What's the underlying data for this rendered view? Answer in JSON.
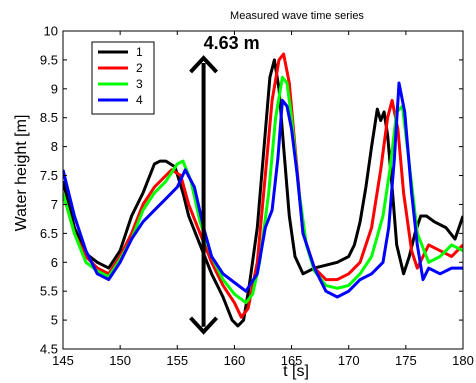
{
  "chart_data": {
    "type": "line",
    "title": "Measured wave time series",
    "xlabel": "t [s]",
    "ylabel": "Water height [m]",
    "xlim": [
      145,
      180
    ],
    "ylim": [
      4.5,
      10
    ],
    "xticks": [
      145,
      150,
      155,
      160,
      165,
      170,
      175,
      180
    ],
    "yticks": [
      4.5,
      5,
      5.5,
      6,
      6.5,
      7,
      7.5,
      8,
      8.5,
      9,
      9.5,
      10
    ],
    "grid": false,
    "legend_position": "top-left",
    "annotation": {
      "text": "4.63 m",
      "x": 157.3,
      "y_top": 9.55,
      "y_bottom": 4.78
    },
    "series": [
      {
        "name": "1",
        "color": "#000000",
        "x": [
          145,
          146,
          147,
          148,
          149,
          150,
          151,
          152,
          153,
          153.5,
          154,
          154.8,
          155.5,
          156,
          157,
          158,
          159,
          159.8,
          160.3,
          160.8,
          161.3,
          162,
          162.6,
          163.1,
          163.5,
          163.9,
          164.3,
          164.8,
          165.3,
          166,
          167,
          168,
          169,
          170,
          170.5,
          171,
          171.5,
          172,
          172.5,
          172.8,
          173.1,
          173.4,
          173.8,
          174.2,
          174.8,
          175.3,
          175.8,
          176.3,
          176.8,
          177.5,
          178.5,
          179.3,
          180
        ],
        "y": [
          7.4,
          6.6,
          6.15,
          6.0,
          5.9,
          6.2,
          6.8,
          7.2,
          7.7,
          7.75,
          7.75,
          7.65,
          7.2,
          6.8,
          6.3,
          5.8,
          5.4,
          5.0,
          4.9,
          5.0,
          5.6,
          6.6,
          8.0,
          9.2,
          9.5,
          9.0,
          8.0,
          6.8,
          6.1,
          5.8,
          5.9,
          5.95,
          6.0,
          6.1,
          6.3,
          6.7,
          7.3,
          8.0,
          8.65,
          8.45,
          8.6,
          8.2,
          7.3,
          6.3,
          5.8,
          6.1,
          6.5,
          6.8,
          6.8,
          6.7,
          6.6,
          6.4,
          6.8
        ]
      },
      {
        "name": "2",
        "color": "#ff0000",
        "x": [
          145,
          146,
          147,
          148,
          149,
          150,
          151,
          152,
          153,
          154,
          154.5,
          155.3,
          156,
          157,
          158,
          159,
          160,
          160.6,
          161.2,
          162,
          162.7,
          163.3,
          163.9,
          164.3,
          164.8,
          165.3,
          166,
          167,
          168,
          169,
          170,
          171,
          172,
          172.8,
          173.4,
          173.8,
          174.3,
          174.8,
          175.5,
          176,
          177,
          178,
          179,
          180
        ],
        "y": [
          7.2,
          6.5,
          6.1,
          5.9,
          5.8,
          6.1,
          6.5,
          7.0,
          7.3,
          7.5,
          7.6,
          7.5,
          7.0,
          6.5,
          6.0,
          5.6,
          5.3,
          5.05,
          5.2,
          6.0,
          7.5,
          8.8,
          9.5,
          9.6,
          9.1,
          8.0,
          6.5,
          5.9,
          5.7,
          5.7,
          5.8,
          6.0,
          6.6,
          7.6,
          8.5,
          8.8,
          8.3,
          7.2,
          6.2,
          5.9,
          6.3,
          6.2,
          6.1,
          6.3
        ]
      },
      {
        "name": "3",
        "color": "#00ff00",
        "x": [
          145,
          146,
          147,
          148,
          149,
          150,
          151,
          152,
          153,
          154,
          155,
          155.5,
          156.2,
          157,
          158,
          159,
          160,
          161,
          161.6,
          162.2,
          163,
          163.6,
          164.2,
          164.6,
          165,
          165.6,
          166.3,
          167,
          168,
          169,
          170,
          171,
          172,
          173,
          173.6,
          174.2,
          174.7,
          175.3,
          176,
          177,
          178,
          179,
          180
        ],
        "y": [
          7.2,
          6.5,
          6.0,
          5.85,
          5.75,
          6.05,
          6.4,
          6.9,
          7.2,
          7.4,
          7.7,
          7.75,
          7.4,
          6.7,
          6.1,
          5.7,
          5.45,
          5.3,
          5.45,
          6.0,
          7.2,
          8.5,
          9.2,
          9.1,
          8.5,
          7.3,
          6.3,
          5.85,
          5.6,
          5.55,
          5.6,
          5.8,
          6.1,
          6.8,
          7.6,
          8.6,
          8.7,
          7.7,
          6.5,
          6.0,
          6.1,
          6.3,
          6.2
        ]
      },
      {
        "name": "4",
        "color": "#0000ff",
        "x": [
          145,
          146,
          147,
          148,
          149,
          150,
          151,
          152,
          153,
          154,
          155,
          155.7,
          156.5,
          157.3,
          158,
          159,
          160,
          161,
          162,
          162.7,
          163.3,
          163.8,
          164.2,
          164.6,
          165,
          165.5,
          166,
          167,
          168,
          169,
          170,
          171,
          172,
          173,
          173.5,
          174,
          174.4,
          174.9,
          175.5,
          176,
          176.5,
          177,
          178,
          179,
          180
        ],
        "y": [
          7.6,
          6.8,
          6.2,
          5.8,
          5.7,
          6.0,
          6.4,
          6.7,
          6.9,
          7.1,
          7.3,
          7.6,
          7.3,
          6.6,
          6.1,
          5.8,
          5.65,
          5.5,
          5.8,
          6.6,
          6.9,
          7.8,
          8.8,
          8.7,
          8.3,
          7.5,
          6.5,
          5.9,
          5.5,
          5.4,
          5.5,
          5.7,
          5.8,
          6.0,
          6.6,
          7.8,
          9.1,
          8.6,
          7.2,
          6.3,
          5.7,
          5.9,
          5.8,
          5.9,
          5.9
        ]
      }
    ]
  }
}
